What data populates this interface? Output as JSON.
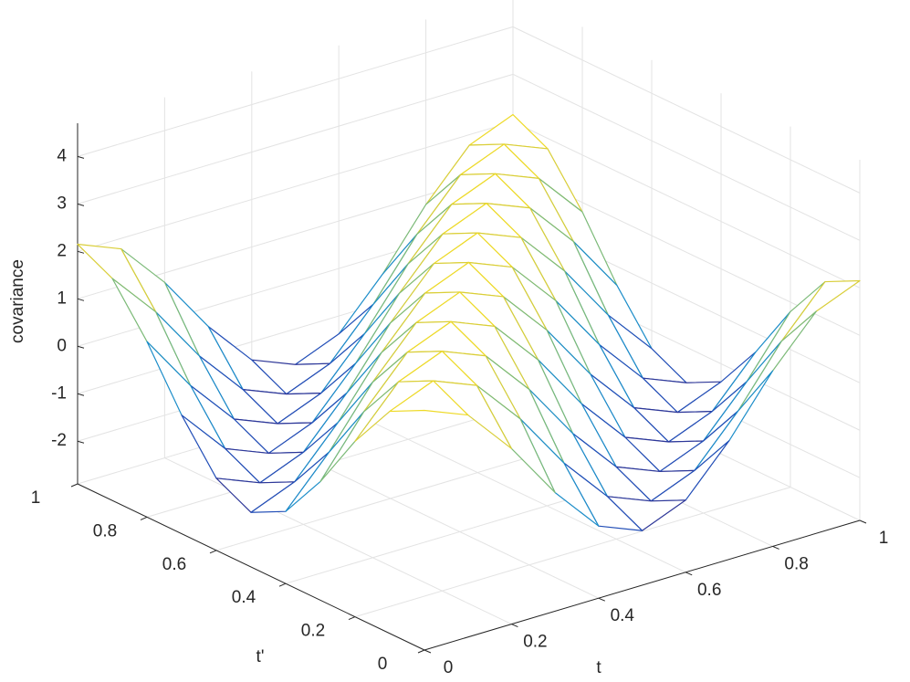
{
  "chart_data": {
    "type": "surface",
    "x_label": "t",
    "y_label": "t'",
    "z_label": "covariance",
    "x": [
      0,
      0.1,
      0.2,
      0.3,
      0.4,
      0.5,
      0.6,
      0.7,
      0.8,
      0.9,
      1
    ],
    "y": [
      0,
      0.1,
      0.2,
      0.3,
      0.4,
      0.5,
      0.6,
      0.7,
      0.8,
      0.9,
      1
    ],
    "z": [
      [
        2.15,
        1.78,
        0.8,
        -0.4,
        -1.38,
        -1.75,
        -1.38,
        -0.4,
        0.8,
        1.78,
        2.15
      ],
      [
        1.78,
        2.15,
        1.78,
        0.8,
        -0.4,
        -1.38,
        -1.75,
        -1.38,
        -0.4,
        0.8,
        1.78
      ],
      [
        0.8,
        1.78,
        2.15,
        1.78,
        0.8,
        -0.4,
        -1.38,
        -1.75,
        -1.38,
        -0.4,
        0.8
      ],
      [
        -0.4,
        0.8,
        1.78,
        2.15,
        1.78,
        0.8,
        -0.4,
        -1.38,
        -1.75,
        -1.38,
        -0.4
      ],
      [
        -1.38,
        -0.4,
        0.8,
        1.78,
        2.15,
        1.78,
        0.8,
        -0.4,
        -1.38,
        -1.75,
        -1.38
      ],
      [
        -1.75,
        -1.38,
        -0.4,
        0.8,
        1.78,
        2.15,
        1.78,
        0.8,
        -0.4,
        -1.38,
        -1.75
      ],
      [
        -1.38,
        -1.75,
        -1.38,
        -0.4,
        0.8,
        1.78,
        2.15,
        1.78,
        0.8,
        -0.4,
        -1.38
      ],
      [
        -0.4,
        -1.38,
        -1.75,
        -1.38,
        -0.4,
        0.8,
        1.78,
        2.15,
        1.78,
        0.8,
        -0.4
      ],
      [
        0.8,
        -0.4,
        -1.38,
        -1.75,
        -1.38,
        -0.4,
        0.8,
        1.78,
        2.15,
        1.78,
        0.8
      ],
      [
        1.78,
        0.8,
        -0.4,
        -1.38,
        -1.75,
        -1.38,
        -0.4,
        0.8,
        1.78,
        2.15,
        1.78
      ],
      [
        2.15,
        1.78,
        0.8,
        -0.4,
        -1.38,
        -1.75,
        -1.38,
        -0.4,
        0.8,
        1.78,
        2.15
      ]
    ],
    "xlim": [
      0,
      1
    ],
    "ylim": [
      0,
      1
    ],
    "zlim": [
      -2.9,
      4.7
    ],
    "xticks": [
      0,
      0.2,
      0.4,
      0.6,
      0.8,
      1
    ],
    "yticks": [
      0,
      0.2,
      0.4,
      0.6,
      0.8,
      1
    ],
    "zticks": [
      -2,
      -1,
      0,
      1,
      2,
      3,
      4
    ],
    "grid": true,
    "colormap": "parula"
  }
}
